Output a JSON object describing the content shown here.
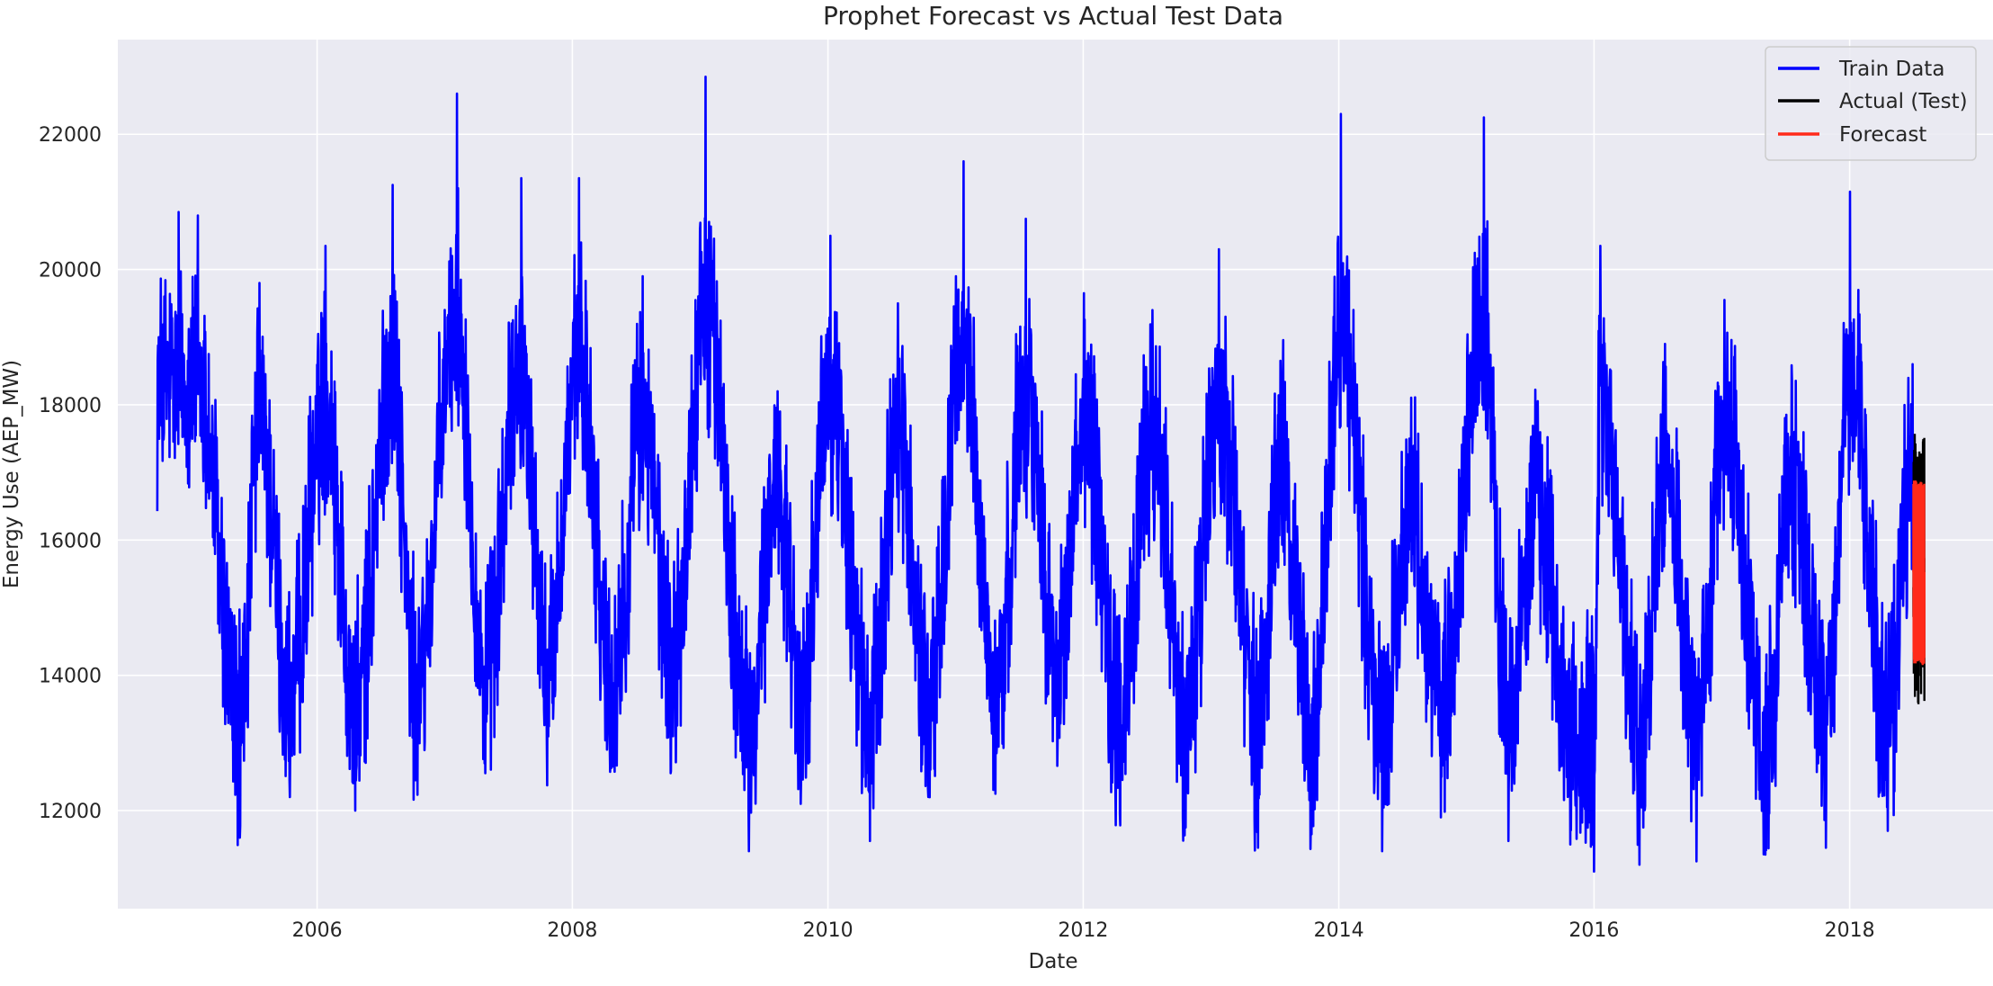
{
  "chart_data": {
    "type": "line",
    "title": "Prophet Forecast vs Actual Test Data",
    "xlabel": "Date",
    "ylabel": "Energy Use (AEP_MW)",
    "xlim": [
      "2004-06-10",
      "2019-02-15"
    ],
    "ylim": [
      10550,
      23400
    ],
    "x_ticks": [
      "2006",
      "2008",
      "2010",
      "2012",
      "2014",
      "2016",
      "2018"
    ],
    "y_ticks": [
      12000,
      14000,
      16000,
      18000,
      20000,
      22000
    ],
    "grid": true,
    "legend_position": "top-right",
    "colors": {
      "background": "#eaeaf2",
      "grid": "#ffffff",
      "train": "#0000ff",
      "actual": "#000000",
      "forecast": "#ff2a1a"
    },
    "series": [
      {
        "name": "Train Data",
        "color": "#0000ff",
        "start": "2004-10-01",
        "end": "2018-07-01",
        "min": 11100,
        "max": 22850,
        "peaks": [
          {
            "date": "2004-12-01",
            "value": 20850
          },
          {
            "date": "2005-01-25",
            "value": 20800
          },
          {
            "date": "2005-07-20",
            "value": 19800
          },
          {
            "date": "2006-01-25",
            "value": 20350
          },
          {
            "date": "2006-08-05",
            "value": 21250
          },
          {
            "date": "2007-02-05",
            "value": 22600
          },
          {
            "date": "2007-08-08",
            "value": 21350
          },
          {
            "date": "2008-01-20",
            "value": 21350
          },
          {
            "date": "2008-07-20",
            "value": 19900
          },
          {
            "date": "2009-01-16",
            "value": 22850
          },
          {
            "date": "2009-08-10",
            "value": 18200
          },
          {
            "date": "2010-01-08",
            "value": 20500
          },
          {
            "date": "2010-07-20",
            "value": 19500
          },
          {
            "date": "2011-01-24",
            "value": 21600
          },
          {
            "date": "2011-07-21",
            "value": 20750
          },
          {
            "date": "2012-01-03",
            "value": 19650
          },
          {
            "date": "2012-07-17",
            "value": 19400
          },
          {
            "date": "2013-01-23",
            "value": 20300
          },
          {
            "date": "2013-07-18",
            "value": 18650
          },
          {
            "date": "2014-01-07",
            "value": 22300
          },
          {
            "date": "2014-07-22",
            "value": 17500
          },
          {
            "date": "2015-02-20",
            "value": 22250
          },
          {
            "date": "2015-07-20",
            "value": 17550
          },
          {
            "date": "2016-01-19",
            "value": 20350
          },
          {
            "date": "2016-07-22",
            "value": 18900
          },
          {
            "date": "2017-01-08",
            "value": 19550
          },
          {
            "date": "2017-07-20",
            "value": 18350
          },
          {
            "date": "2018-01-02",
            "value": 21150
          },
          {
            "date": "2018-06-30",
            "value": 18600
          }
        ],
        "troughs": [
          {
            "date": "2005-05-25",
            "value": 11600
          },
          {
            "date": "2005-10-15",
            "value": 12200
          },
          {
            "date": "2006-04-20",
            "value": 12000
          },
          {
            "date": "2006-10-10",
            "value": 12450
          },
          {
            "date": "2007-04-25",
            "value": 12700
          },
          {
            "date": "2007-10-20",
            "value": 13000
          },
          {
            "date": "2008-04-25",
            "value": 12650
          },
          {
            "date": "2008-10-15",
            "value": 13100
          },
          {
            "date": "2009-05-20",
            "value": 11400
          },
          {
            "date": "2009-10-15",
            "value": 12100
          },
          {
            "date": "2010-05-01",
            "value": 11550
          },
          {
            "date": "2010-10-15",
            "value": 12200
          },
          {
            "date": "2011-04-25",
            "value": 12250
          },
          {
            "date": "2011-10-20",
            "value": 13100
          },
          {
            "date": "2012-04-15",
            "value": 11950
          },
          {
            "date": "2012-10-20",
            "value": 11750
          },
          {
            "date": "2013-05-15",
            "value": 11450
          },
          {
            "date": "2013-10-15",
            "value": 11650
          },
          {
            "date": "2014-05-05",
            "value": 11400
          },
          {
            "date": "2014-10-20",
            "value": 11900
          },
          {
            "date": "2015-05-01",
            "value": 11550
          },
          {
            "date": "2015-10-25",
            "value": 11500
          },
          {
            "date": "2016-01-01",
            "value": 11100
          },
          {
            "date": "2016-05-10",
            "value": 11200
          },
          {
            "date": "2016-10-20",
            "value": 11250
          },
          {
            "date": "2017-05-05",
            "value": 11350
          },
          {
            "date": "2017-10-25",
            "value": 11450
          },
          {
            "date": "2018-04-20",
            "value": 11700
          }
        ]
      },
      {
        "name": "Actual (Test)",
        "color": "#000000",
        "start": "2018-07-02",
        "end": "2018-08-03",
        "min": 13500,
        "max": 17600
      },
      {
        "name": "Forecast",
        "color": "#ff2a1a",
        "start": "2018-07-02",
        "end": "2018-08-03",
        "min": 14150,
        "max": 16900
      }
    ]
  }
}
